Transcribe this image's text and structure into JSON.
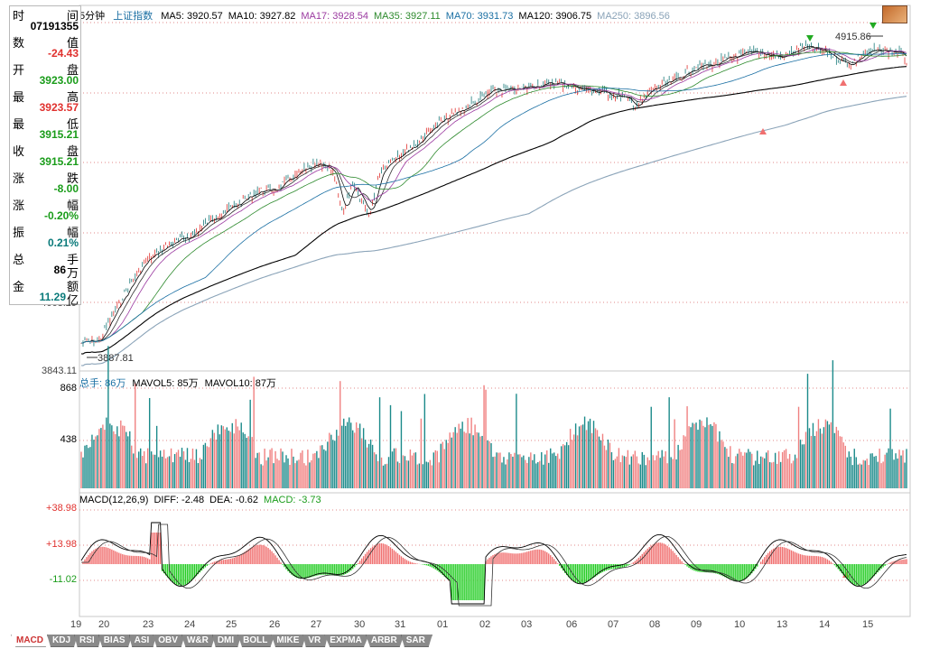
{
  "info_panel": [
    {
      "key": "时",
      "key2": "间",
      "value": "",
      "cls": ""
    },
    {
      "key": "",
      "key2": "",
      "value": "07191355",
      "cls": ""
    },
    {
      "key": "数",
      "key2": "值",
      "value": "",
      "cls": ""
    },
    {
      "key": "",
      "key2": "",
      "value": "-24.43",
      "cls": "red"
    },
    {
      "key": "开",
      "key2": "盘",
      "value": "",
      "cls": ""
    },
    {
      "key": "",
      "key2": "",
      "value": "3923.00",
      "cls": "green"
    },
    {
      "key": "最",
      "key2": "高",
      "value": "",
      "cls": ""
    },
    {
      "key": "",
      "key2": "",
      "value": "3923.57",
      "cls": "red"
    },
    {
      "key": "最",
      "key2": "低",
      "value": "",
      "cls": ""
    },
    {
      "key": "",
      "key2": "",
      "value": "3915.21",
      "cls": "green"
    },
    {
      "key": "收",
      "key2": "盘",
      "value": "",
      "cls": ""
    },
    {
      "key": "",
      "key2": "",
      "value": "3915.21",
      "cls": "green"
    },
    {
      "key": "涨",
      "key2": "跌",
      "value": "",
      "cls": ""
    },
    {
      "key": "",
      "key2": "",
      "value": "-8.00",
      "cls": "green"
    },
    {
      "key": "涨",
      "key2": "幅",
      "value": "",
      "cls": ""
    },
    {
      "key": "",
      "key2": "",
      "value": "-0.20%",
      "cls": "green"
    },
    {
      "key": "振",
      "key2": "幅",
      "value": "",
      "cls": ""
    },
    {
      "key": "",
      "key2": "",
      "value": "0.21%",
      "cls": "teal"
    },
    {
      "key": "总",
      "key2": "手",
      "value": "",
      "cls": ""
    },
    {
      "key": "",
      "key2": "万",
      "value": "86",
      "cls": ""
    },
    {
      "key": "金",
      "key2": "额",
      "value": "",
      "cls": ""
    },
    {
      "key": "",
      "key2": "亿",
      "value": "11.29",
      "cls": "teal"
    }
  ],
  "header": {
    "period": "5分钟",
    "index_name": "上证指数",
    "ma": [
      {
        "label": "MA5: 3920.57",
        "color": "#000000"
      },
      {
        "label": "MA10: 3927.82",
        "color": "#000000"
      },
      {
        "label": "MA17: 3928.54",
        "color": "#9b3aa0"
      },
      {
        "label": "MA35: 3927.11",
        "color": "#2d8a2d"
      },
      {
        "label": "MA70: 3931.73",
        "color": "#1a6fa3"
      },
      {
        "label": "MA120: 3906.75",
        "color": "#000000"
      },
      {
        "label": "MA250: 3896.56",
        "color": "#8aa3b8"
      }
    ]
  },
  "price_axis": {
    "mid_label": "4068.29",
    "bottom_label": "3843.11"
  },
  "annotations": {
    "high": "4915.86",
    "low": "3887.81"
  },
  "volume_header": {
    "label": "总手: 86万",
    "ma5": "MAVOL5: 85万",
    "ma10": "MAVOL10: 87万"
  },
  "volume_axis": {
    "top": "868",
    "mid": "438"
  },
  "macd_header": {
    "label": "MACD(12,26,9)",
    "diff": "DIFF: -2.48",
    "dea": "DEA: -0.62",
    "macd": "MACD: -3.73"
  },
  "macd_axis": {
    "a": "+38.98",
    "b": "+13.98",
    "c": "-11.02"
  },
  "date_axis": [
    "19",
    "20",
    "23",
    "24",
    "25",
    "26",
    "27",
    "30",
    "31",
    "01",
    "02",
    "03",
    "06",
    "07",
    "08",
    "09",
    "10",
    "13",
    "14",
    "15"
  ],
  "tabs": [
    "MACD",
    "KDJ",
    "RSI",
    "BIAS",
    "ASI",
    "OBV",
    "W&R",
    "DMI",
    "BOLL",
    "MIKE",
    "VR",
    "EXPMA",
    "ARBR",
    "SAR"
  ],
  "active_tab": "MACD",
  "colors": {
    "up": "#f08080",
    "down": "#1b8a8a",
    "macd_up": "#f07070",
    "macd_down": "#22cc22",
    "grid": "#e08a8a"
  }
}
